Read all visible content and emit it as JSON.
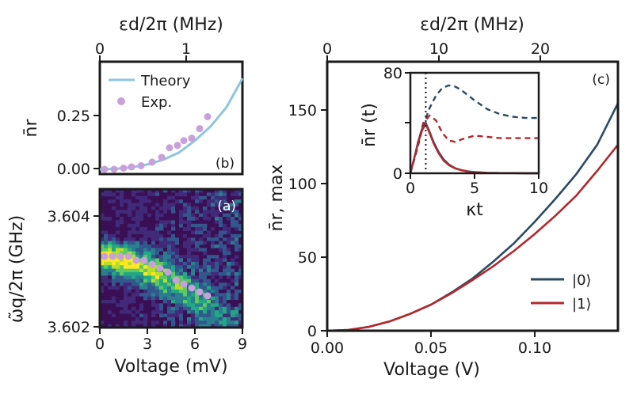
{
  "colors": {
    "theory": "#8fc6dd",
    "exp": "#c9a0dc",
    "state0": "#2b4a63",
    "state1": "#b3282d",
    "heat_bg": "#3b0f55",
    "heat_hi": "#fde725"
  },
  "chart_data": [
    {
      "id": "b",
      "type": "scatter",
      "panel_label": "(b)",
      "ylabel": "n̄r",
      "top_xlabel": "εd/2π (MHz)",
      "top_xticks": [
        "0",
        "1"
      ],
      "top_xlim": [
        0,
        1.5
      ],
      "xlim": [
        0,
        9
      ],
      "ylim": [
        -0.02,
        0.45
      ],
      "yticks": [
        "0.00",
        "0.25"
      ],
      "legend": [
        "Theory",
        "Exp."
      ],
      "theory": {
        "x": [
          0,
          1,
          2,
          3,
          4,
          5,
          6,
          7,
          8,
          9
        ],
        "y": [
          0.0,
          0.002,
          0.008,
          0.02,
          0.04,
          0.07,
          0.12,
          0.18,
          0.26,
          0.38
        ]
      },
      "exp": {
        "x": [
          0.3,
          0.9,
          1.5,
          2.0,
          2.6,
          3.3,
          3.9,
          4.4,
          4.9,
          5.3,
          5.8,
          6.3,
          6.8
        ],
        "y": [
          0.0,
          0.0,
          0.005,
          0.01,
          0.015,
          0.03,
          0.05,
          0.09,
          0.1,
          0.12,
          0.13,
          0.17,
          0.22
        ]
      }
    },
    {
      "id": "a",
      "type": "heatmap",
      "panel_label": "(a)",
      "ylabel": "ω̃q/2π (GHz)",
      "xlabel": "Voltage (mV)",
      "xlim": [
        0,
        9
      ],
      "xticks": [
        "0",
        "3",
        "6",
        "9"
      ],
      "ylim": [
        3.602,
        3.6055
      ],
      "yticks": [
        "3.602",
        "3.604"
      ],
      "exp": {
        "x": [
          0.3,
          0.8,
          1.3,
          1.8,
          2.3,
          2.8,
          3.3,
          3.8,
          4.3,
          4.8,
          5.3,
          5.8,
          6.3,
          6.8
        ],
        "y": [
          3.6038,
          3.6038,
          3.6038,
          3.6038,
          3.6037,
          3.6037,
          3.6036,
          3.6035,
          3.6034,
          3.6032,
          3.6031,
          3.603,
          3.6029,
          3.6028
        ]
      }
    },
    {
      "id": "c",
      "type": "line",
      "panel_label": "(c)",
      "xlabel": "Voltage (V)",
      "top_xlabel": "εd/2π (MHz)",
      "ylabel": "n̄r, max",
      "xlim": [
        0,
        0.14
      ],
      "xticks": [
        "0.00",
        "0.05",
        "0.10"
      ],
      "top_xlim": [
        0,
        26
      ],
      "top_xticks": [
        "0",
        "10",
        "20"
      ],
      "ylim": [
        0,
        175
      ],
      "yticks": [
        "0",
        "50",
        "100",
        "150"
      ],
      "legend": [
        "|0⟩",
        "|1⟩"
      ],
      "series": [
        {
          "name": "|0⟩",
          "x": [
            0,
            0.01,
            0.02,
            0.03,
            0.04,
            0.05,
            0.06,
            0.07,
            0.08,
            0.09,
            0.1,
            0.11,
            0.12,
            0.13,
            0.14
          ],
          "y": [
            0,
            0.5,
            2.5,
            6,
            11,
            17,
            25,
            34,
            45,
            57,
            71,
            86,
            102,
            121,
            148
          ]
        },
        {
          "name": "|1⟩",
          "x": [
            0,
            0.01,
            0.02,
            0.03,
            0.04,
            0.05,
            0.06,
            0.07,
            0.08,
            0.09,
            0.1,
            0.11,
            0.12,
            0.13,
            0.14
          ],
          "y": [
            0,
            0.5,
            2.5,
            6,
            11,
            17,
            24.5,
            33,
            42,
            52,
            63,
            75,
            88,
            104,
            121
          ]
        }
      ]
    },
    {
      "id": "c-inset",
      "type": "line",
      "xlabel": "κt",
      "ylabel": "n̄r (t)",
      "xlim": [
        0,
        10
      ],
      "xticks": [
        "0",
        "5",
        "10"
      ],
      "ylim": [
        0,
        80
      ],
      "yticks": [
        "0",
        "40",
        "80"
      ],
      "vline_x": 1.2,
      "series": [
        {
          "name": "",
          "style": "dashed-0",
          "x": [
            0,
            0.5,
            1,
            1.5,
            2,
            2.5,
            3,
            3.5,
            4,
            5,
            6,
            7,
            8,
            9,
            10
          ],
          "y": [
            0,
            18,
            38,
            52,
            62,
            68,
            70,
            69,
            66,
            58,
            51,
            47,
            45,
            44,
            44
          ]
        },
        {
          "name": "",
          "style": "dashed-1",
          "x": [
            0,
            0.5,
            1,
            1.5,
            2,
            2.5,
            3,
            3.5,
            4,
            5,
            6,
            7,
            8,
            9,
            10
          ],
          "y": [
            0,
            20,
            40,
            46,
            42,
            32,
            26,
            25,
            27,
            30,
            29,
            28,
            28,
            28,
            28
          ]
        },
        {
          "name": "",
          "style": "solid-0",
          "x": [
            0,
            0.3,
            0.6,
            0.9,
            1.2,
            1.5,
            1.8,
            2.2,
            2.6,
            3,
            3.5,
            4,
            4.5,
            5,
            6,
            7,
            8,
            9,
            10
          ],
          "y": [
            0,
            12,
            25,
            35,
            40,
            33,
            25,
            17,
            11,
            7,
            4,
            2.5,
            1.5,
            1,
            0.4,
            0.2,
            0.1,
            0,
            0
          ]
        },
        {
          "name": "",
          "style": "solid-1",
          "x": [
            0,
            0.3,
            0.6,
            0.9,
            1.2,
            1.5,
            1.8,
            2.2,
            2.6,
            3,
            3.5,
            4,
            4.5,
            5,
            6,
            7,
            8,
            9,
            10
          ],
          "y": [
            0,
            12,
            24,
            34,
            39,
            32,
            24,
            16,
            10,
            6.5,
            3.8,
            2.3,
            1.4,
            0.9,
            0.4,
            0.2,
            0.1,
            0,
            0
          ]
        }
      ]
    }
  ]
}
